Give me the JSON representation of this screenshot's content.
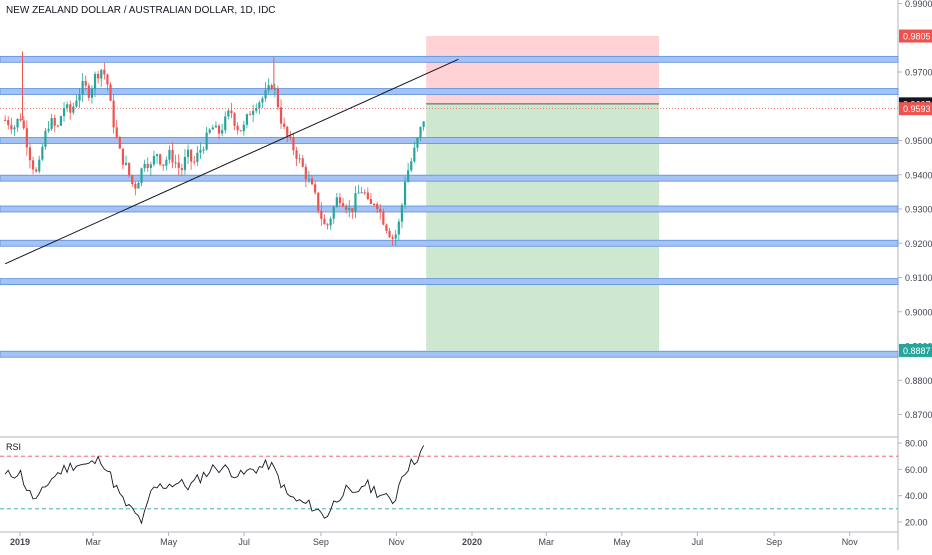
{
  "header": {
    "title": "NEW ZEALAND DOLLAR / AUSTRALIAN DOLLAR, 1D, IDC"
  },
  "rsi_panel": {
    "label": "RSI"
  },
  "colors": {
    "up_candle": "#26a69a",
    "down_candle": "#ef5350",
    "level_band": "#a4c2f4",
    "level_band_border": "#5b8fe0",
    "stop_zone": "#ffcdd2",
    "target_zone": "#c8e6c9",
    "rsi_line": "#131722",
    "rsi_bounds": "#ef5350",
    "current_price_badge": "#ef5350",
    "entry_badge": "#131722",
    "stop_badge": "#ef5350",
    "target_badge": "#26a69a"
  },
  "chart_data": [
    {
      "type": "candlestick",
      "instrument": "NEW ZEALAND DOLLAR / AUSTRALIAN DOLLAR",
      "timeframe": "1D",
      "source": "IDC",
      "x_axis_ticks": [
        "2019",
        "Mar",
        "May",
        "Jul",
        "Sep",
        "Nov",
        "2020",
        "Mar",
        "May",
        "Jul",
        "Sep",
        "Nov"
      ],
      "y_axis_ticks": [
        "0.9900",
        "0.9700",
        "0.9600",
        "0.9500",
        "0.9400",
        "0.9300",
        "0.9200",
        "0.9100",
        "0.9000",
        "0.8900",
        "0.8800",
        "0.8700"
      ],
      "ylim": [
        0.864,
        0.99
      ],
      "price_badges": [
        {
          "label": "0.9805",
          "value": 0.9805,
          "role": "stop"
        },
        {
          "label": "0.9607",
          "value": 0.9607,
          "role": "entry"
        },
        {
          "label": "0.9593",
          "value": 0.9593,
          "role": "current"
        },
        {
          "label": "0.8887",
          "value": 0.8887,
          "role": "target"
        }
      ],
      "horizontal_levels": [
        0.9737,
        0.9643,
        0.95,
        0.939,
        0.93,
        0.92,
        0.9088,
        0.8876
      ],
      "trendline": {
        "from": [
          "2018-12-20",
          0.914
        ],
        "to": [
          "2019-12-21",
          0.9737
        ]
      },
      "position": {
        "direction": "short",
        "entry": 0.9607,
        "stop": 0.9805,
        "target": 0.8887,
        "start": "2019-11-25",
        "end": "2020-05-31"
      },
      "price_path": [
        [
          "2018-12-20",
          0.956
        ],
        [
          "2018-12-28",
          0.954
        ],
        [
          "2019-01-01",
          0.9575
        ],
        [
          "2019-01-05",
          0.952
        ],
        [
          "2019-01-10",
          0.944
        ],
        [
          "2019-01-15",
          0.9395
        ],
        [
          "2019-01-20",
          0.95
        ],
        [
          "2019-01-25",
          0.956
        ],
        [
          "2019-01-31",
          0.953
        ],
        [
          "2019-02-05",
          0.96
        ],
        [
          "2019-02-11",
          0.958
        ],
        [
          "2019-02-16",
          0.963
        ],
        [
          "2019-02-21",
          0.966
        ],
        [
          "2019-02-26",
          0.964
        ],
        [
          "2019-03-03",
          0.969
        ],
        [
          "2019-03-08",
          0.971
        ],
        [
          "2019-03-12",
          0.968
        ],
        [
          "2019-03-16",
          0.958
        ],
        [
          "2019-03-22",
          0.947
        ],
        [
          "2019-03-28",
          0.942
        ],
        [
          "2019-04-03",
          0.936
        ],
        [
          "2019-04-08",
          0.94
        ],
        [
          "2019-04-12",
          0.945
        ],
        [
          "2019-04-17",
          0.942
        ],
        [
          "2019-04-21",
          0.947
        ],
        [
          "2019-04-26",
          0.943
        ],
        [
          "2019-05-02",
          0.946
        ],
        [
          "2019-05-06",
          0.944
        ],
        [
          "2019-05-11",
          0.941
        ],
        [
          "2019-05-16",
          0.946
        ],
        [
          "2019-05-21",
          0.943
        ],
        [
          "2019-05-26",
          0.947
        ],
        [
          "2019-05-31",
          0.95
        ],
        [
          "2019-06-05",
          0.954
        ],
        [
          "2019-06-10",
          0.952
        ],
        [
          "2019-06-15",
          0.955
        ],
        [
          "2019-06-20",
          0.959
        ],
        [
          "2019-06-25",
          0.954
        ],
        [
          "2019-06-30",
          0.953
        ],
        [
          "2019-07-05",
          0.958
        ],
        [
          "2019-07-10",
          0.961
        ],
        [
          "2019-07-15",
          0.962
        ],
        [
          "2019-07-20",
          0.964
        ],
        [
          "2019-07-24",
          0.967
        ],
        [
          "2019-07-28",
          0.961
        ],
        [
          "2019-08-01",
          0.954
        ],
        [
          "2019-08-06",
          0.95
        ],
        [
          "2019-08-11",
          0.947
        ],
        [
          "2019-08-16",
          0.943
        ],
        [
          "2019-08-21",
          0.939
        ],
        [
          "2019-08-26",
          0.935
        ],
        [
          "2019-08-31",
          0.929
        ],
        [
          "2019-09-05",
          0.924
        ],
        [
          "2019-09-10",
          0.929
        ],
        [
          "2019-09-15",
          0.934
        ],
        [
          "2019-09-20",
          0.932
        ],
        [
          "2019-09-25",
          0.929
        ],
        [
          "2019-09-30",
          0.934
        ],
        [
          "2019-10-05",
          0.936
        ],
        [
          "2019-10-10",
          0.93
        ],
        [
          "2019-10-15",
          0.933
        ],
        [
          "2019-10-20",
          0.928
        ],
        [
          "2019-10-25",
          0.924
        ],
        [
          "2019-10-30",
          0.921
        ],
        [
          "2019-11-04",
          0.927
        ],
        [
          "2019-11-08",
          0.939
        ],
        [
          "2019-11-13",
          0.944
        ],
        [
          "2019-11-18",
          0.95
        ],
        [
          "2019-11-22",
          0.955
        ],
        [
          "2019-11-25",
          0.9593
        ]
      ]
    },
    {
      "type": "line",
      "name": "RSI",
      "y_axis_ticks": [
        "80.00",
        "60.00",
        "40.00",
        "20.00"
      ],
      "ylim": [
        15,
        83
      ],
      "bounds": [
        70,
        30
      ],
      "values": [
        [
          "2018-12-20",
          55
        ],
        [
          "2019-01-01",
          58
        ],
        [
          "2019-01-08",
          42
        ],
        [
          "2019-01-15",
          36
        ],
        [
          "2019-01-25",
          52
        ],
        [
          "2019-02-05",
          60
        ],
        [
          "2019-02-15",
          64
        ],
        [
          "2019-02-25",
          63
        ],
        [
          "2019-03-08",
          68
        ],
        [
          "2019-03-15",
          55
        ],
        [
          "2019-03-25",
          36
        ],
        [
          "2019-04-03",
          27
        ],
        [
          "2019-04-10",
          20
        ],
        [
          "2019-04-18",
          45
        ],
        [
          "2019-04-28",
          48
        ],
        [
          "2019-05-08",
          50
        ],
        [
          "2019-05-18",
          47
        ],
        [
          "2019-05-28",
          55
        ],
        [
          "2019-06-08",
          62
        ],
        [
          "2019-06-18",
          60
        ],
        [
          "2019-06-28",
          55
        ],
        [
          "2019-07-08",
          60
        ],
        [
          "2019-07-16",
          62
        ],
        [
          "2019-07-22",
          64
        ],
        [
          "2019-07-28",
          55
        ],
        [
          "2019-08-05",
          40
        ],
        [
          "2019-08-15",
          35
        ],
        [
          "2019-08-25",
          32
        ],
        [
          "2019-09-05",
          24
        ],
        [
          "2019-09-12",
          35
        ],
        [
          "2019-09-20",
          45
        ],
        [
          "2019-09-28",
          38
        ],
        [
          "2019-10-05",
          50
        ],
        [
          "2019-10-15",
          44
        ],
        [
          "2019-10-25",
          37
        ],
        [
          "2019-10-30",
          35
        ],
        [
          "2019-11-06",
          58
        ],
        [
          "2019-11-14",
          65
        ],
        [
          "2019-11-20",
          72
        ],
        [
          "2019-11-25",
          78
        ]
      ]
    }
  ]
}
